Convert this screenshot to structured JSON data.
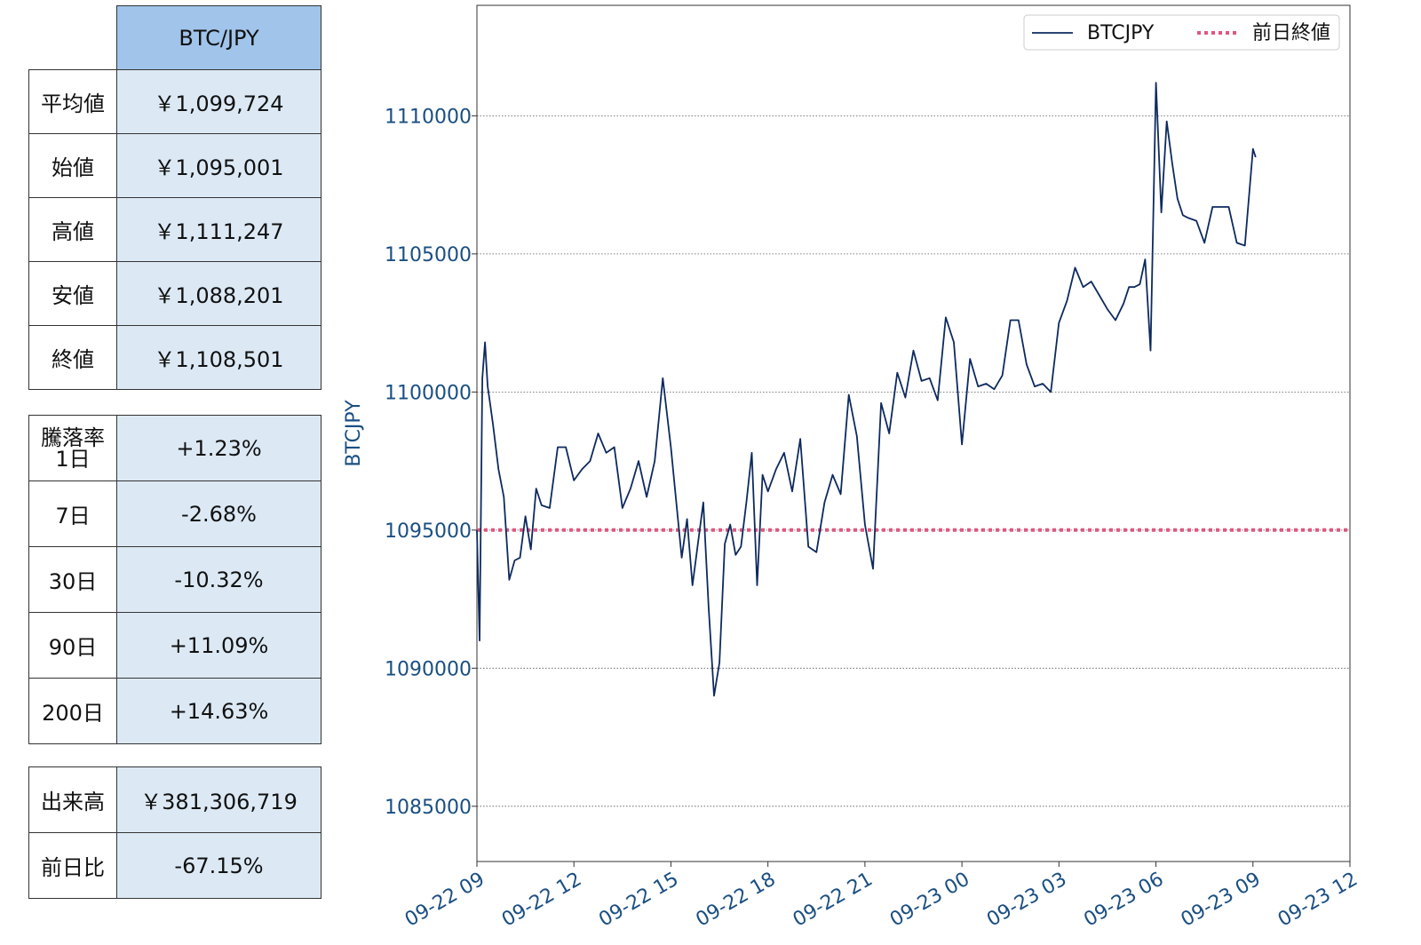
{
  "summary": {
    "pair": "BTC/JPY",
    "rows": [
      {
        "label": "平均値",
        "value": "￥1,099,724"
      },
      {
        "label": "始値",
        "value": "￥1,095,001"
      },
      {
        "label": "高値",
        "value": "￥1,111,247"
      },
      {
        "label": "安値",
        "value": "￥1,088,201"
      },
      {
        "label": "終値",
        "value": "￥1,108,501"
      }
    ]
  },
  "change": {
    "title": "騰落率",
    "rows": [
      {
        "label": "1日",
        "value": "+1.23%"
      },
      {
        "label": "7日",
        "value": "-2.68%"
      },
      {
        "label": "30日",
        "value": "-10.32%"
      },
      {
        "label": "90日",
        "value": "+11.09%"
      },
      {
        "label": "200日",
        "value": "+14.63%"
      }
    ]
  },
  "volume": {
    "rows": [
      {
        "label": "出来高",
        "value": "￥381,306,719"
      },
      {
        "label": "前日比",
        "value": "-67.15%"
      }
    ]
  },
  "colors": {
    "line": "#0d2a5e",
    "prev_close": "#e0577e",
    "axis_text": "#1a4f82",
    "header_fill": "#a0c4ea",
    "value_fill": "#dce9f5"
  },
  "chart_data": {
    "type": "line",
    "ylabel": "BTCJPY",
    "ylim": [
      1083000,
      1114000
    ],
    "yticks": [
      1085000,
      1090000,
      1095000,
      1100000,
      1105000,
      1110000
    ],
    "xlim": [
      "2019-09-22 09:00",
      "2019-09-23 12:00"
    ],
    "xticks": [
      "09-22 09",
      "09-22 12",
      "09-22 15",
      "09-22 18",
      "09-22 21",
      "09-23 00",
      "09-23 03",
      "09-23 06",
      "09-23 09",
      "09-23 12"
    ],
    "grid": "horizontal dotted",
    "legend": "top-right",
    "series": [
      {
        "name": "BTCJPY",
        "x": [
          "09-22 09:00",
          "09-22 09:05",
          "09-22 09:10",
          "09-22 09:15",
          "09-22 09:20",
          "09-22 09:25",
          "09-22 09:30",
          "09-22 09:40",
          "09-22 09:50",
          "09-22 10:00",
          "09-22 10:10",
          "09-22 10:20",
          "09-22 10:30",
          "09-22 10:40",
          "09-22 10:50",
          "09-22 11:00",
          "09-22 11:15",
          "09-22 11:30",
          "09-22 11:45",
          "09-22 12:00",
          "09-22 12:15",
          "09-22 12:30",
          "09-22 12:45",
          "09-22 13:00",
          "09-22 13:15",
          "09-22 13:30",
          "09-22 13:45",
          "09-22 14:00",
          "09-22 14:15",
          "09-22 14:30",
          "09-22 14:45",
          "09-22 15:00",
          "09-22 15:10",
          "09-22 15:20",
          "09-22 15:30",
          "09-22 15:40",
          "09-22 15:50",
          "09-22 16:00",
          "09-22 16:10",
          "09-22 16:20",
          "09-22 16:30",
          "09-22 16:40",
          "09-22 16:50",
          "09-22 17:00",
          "09-22 17:10",
          "09-22 17:20",
          "09-22 17:30",
          "09-22 17:40",
          "09-22 17:50",
          "09-22 18:00",
          "09-22 18:15",
          "09-22 18:30",
          "09-22 18:45",
          "09-22 19:00",
          "09-22 19:15",
          "09-22 19:30",
          "09-22 19:45",
          "09-22 20:00",
          "09-22 20:15",
          "09-22 20:30",
          "09-22 20:45",
          "09-22 21:00",
          "09-22 21:15",
          "09-22 21:30",
          "09-22 21:45",
          "09-22 22:00",
          "09-22 22:15",
          "09-22 22:30",
          "09-22 22:45",
          "09-22 23:00",
          "09-22 23:15",
          "09-22 23:30",
          "09-22 23:45",
          "09-23 00:00",
          "09-23 00:15",
          "09-23 00:30",
          "09-23 00:45",
          "09-23 01:00",
          "09-23 01:15",
          "09-23 01:30",
          "09-23 01:45",
          "09-23 02:00",
          "09-23 02:15",
          "09-23 02:30",
          "09-23 02:45",
          "09-23 03:00",
          "09-23 03:15",
          "09-23 03:30",
          "09-23 03:45",
          "09-23 04:00",
          "09-23 04:15",
          "09-23 04:30",
          "09-23 04:45",
          "09-23 05:00",
          "09-23 05:10",
          "09-23 05:20",
          "09-23 05:30",
          "09-23 05:40",
          "09-23 05:50",
          "09-23 06:00",
          "09-23 06:10",
          "09-23 06:20",
          "09-23 06:30",
          "09-23 06:40",
          "09-23 06:50",
          "09-23 07:00",
          "09-23 07:15",
          "09-23 07:30",
          "09-23 07:45",
          "09-23 08:00",
          "09-23 08:15",
          "09-23 08:30",
          "09-23 08:45",
          "09-23 09:00",
          "09-23 09:05"
        ],
        "y": [
          1095001,
          1091000,
          1100500,
          1101800,
          1100200,
          1099500,
          1098800,
          1097200,
          1096200,
          1093200,
          1093900,
          1094000,
          1095500,
          1094300,
          1096500,
          1095900,
          1095800,
          1098000,
          1098000,
          1096800,
          1097200,
          1097500,
          1098500,
          1097800,
          1098000,
          1095800,
          1096500,
          1097500,
          1096200,
          1097500,
          1100500,
          1098000,
          1096000,
          1094000,
          1095400,
          1093000,
          1094500,
          1096000,
          1092200,
          1089000,
          1090200,
          1094500,
          1095200,
          1094100,
          1094400,
          1096000,
          1097800,
          1093000,
          1097000,
          1096400,
          1097200,
          1097800,
          1096400,
          1098300,
          1094400,
          1094200,
          1096000,
          1097000,
          1096300,
          1099900,
          1098400,
          1095200,
          1093600,
          1099600,
          1098500,
          1100700,
          1099800,
          1101500,
          1100400,
          1100500,
          1099700,
          1102700,
          1101800,
          1098100,
          1101200,
          1100200,
          1100300,
          1100100,
          1100600,
          1102600,
          1102600,
          1101000,
          1100200,
          1100300,
          1100000,
          1102500,
          1103300,
          1104500,
          1103800,
          1104000,
          1103500,
          1103000,
          1102600,
          1103200,
          1103800,
          1103800,
          1103900,
          1104800,
          1101500,
          1111200,
          1106500,
          1109800,
          1108300,
          1107000,
          1106400,
          1106300,
          1106200,
          1105400,
          1106700,
          1106700,
          1106700,
          1105400,
          1105300,
          1108800,
          1108500
        ]
      },
      {
        "name": "前日終値",
        "value": 1095001,
        "style": "dotted"
      }
    ]
  }
}
